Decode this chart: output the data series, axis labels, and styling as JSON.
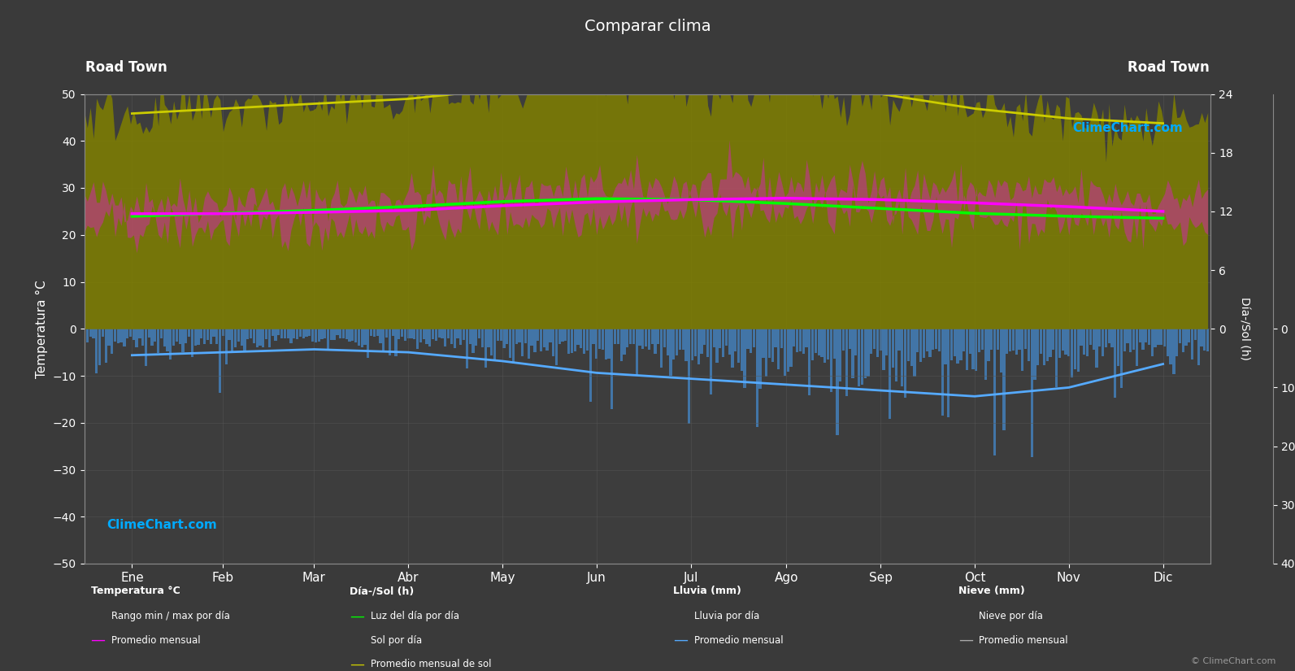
{
  "title": "Comparar clima",
  "location_left": "Road Town",
  "location_right": "Road Town",
  "bg_color": "#3a3a3a",
  "plot_bg_color": "#3d3d3d",
  "grid_color": "#555555",
  "text_color": "#ffffff",
  "months": [
    "Ene",
    "Feb",
    "Mar",
    "Abr",
    "May",
    "Jun",
    "Jul",
    "Ago",
    "Sep",
    "Oct",
    "Nov",
    "Dic"
  ],
  "temp_ylim": [
    -50,
    50
  ],
  "temp_avg_monthly": [
    24.5,
    24.5,
    24.8,
    25.2,
    26.2,
    27.0,
    27.5,
    27.8,
    27.5,
    26.8,
    26.0,
    25.0
  ],
  "temp_max_daily_avg": [
    27.5,
    27.5,
    27.8,
    28.5,
    29.5,
    30.2,
    30.5,
    30.8,
    30.5,
    29.8,
    29.0,
    28.0
  ],
  "temp_min_daily_avg": [
    21.5,
    21.5,
    21.8,
    22.5,
    23.5,
    24.2,
    24.5,
    24.8,
    24.5,
    23.8,
    23.0,
    22.0
  ],
  "daylight_monthly": [
    11.5,
    11.8,
    12.1,
    12.5,
    13.0,
    13.3,
    13.2,
    12.8,
    12.3,
    11.8,
    11.5,
    11.3
  ],
  "sunshine_monthly": [
    22.0,
    22.5,
    23.0,
    23.5,
    24.5,
    25.0,
    25.0,
    25.0,
    24.0,
    22.5,
    21.5,
    21.0
  ],
  "rain_monthly_avg": [
    4.5,
    4.0,
    3.5,
    4.0,
    5.5,
    7.5,
    8.5,
    9.5,
    10.5,
    11.5,
    10.0,
    6.0
  ],
  "temp_color": "#ff00ff",
  "temp_avg_color": "#ff00ff",
  "daylight_color": "#00ff00",
  "sunshine_fill_color": "#808000",
  "sunshine_line_color": "#cccc00",
  "rain_bar_color": "#4488cc",
  "rain_avg_color": "#55aaff",
  "snow_bar_color": "#aaaaaa",
  "snow_avg_color": "#aaaaaa",
  "watermark_color": "#00aaff"
}
